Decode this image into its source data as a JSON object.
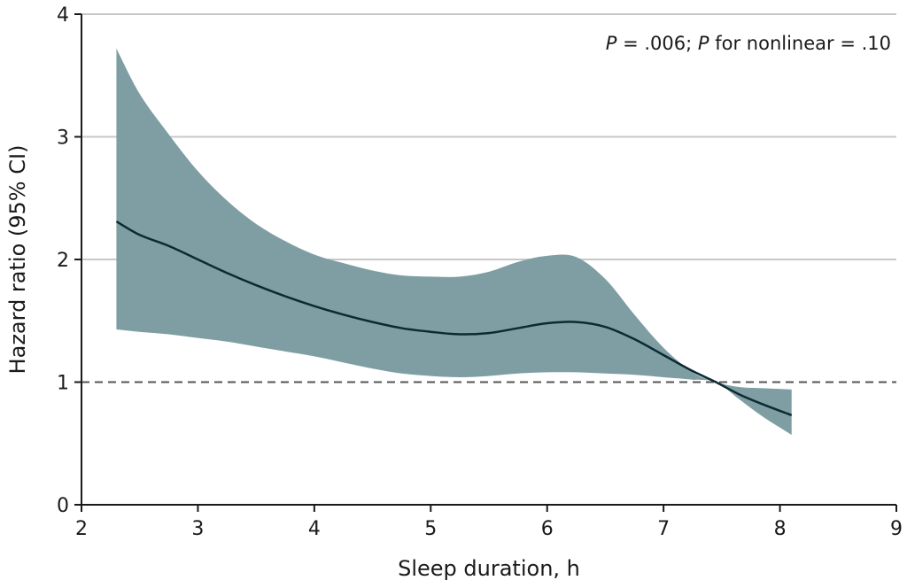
{
  "chart_data": {
    "type": "line",
    "title": "",
    "xlabel": "Sleep duration, h",
    "ylabel": "Hazard ratio (95% CI)",
    "xlim": [
      2,
      9
    ],
    "ylim": [
      0,
      4
    ],
    "xticks": [
      2,
      3,
      4,
      5,
      6,
      7,
      8,
      9
    ],
    "yticks": [
      0,
      1,
      2,
      3,
      4
    ],
    "grid": "horizontal",
    "reference_line": 1,
    "annotation": {
      "p_italic": "P",
      "p_text": " = .006; ",
      "p2_italic": "P",
      "p2_text": " for nonlinear = .10"
    },
    "series": [
      {
        "x": [
          2.3,
          2.5,
          2.75,
          3.0,
          3.25,
          3.5,
          3.75,
          4.0,
          4.25,
          4.5,
          4.75,
          5.0,
          5.25,
          5.5,
          5.75,
          6.0,
          6.25,
          6.5,
          6.75,
          7.0,
          7.25,
          7.45,
          7.65,
          7.85,
          8.1
        ],
        "y": [
          2.31,
          2.2,
          2.11,
          2.0,
          1.89,
          1.79,
          1.7,
          1.62,
          1.55,
          1.49,
          1.44,
          1.41,
          1.39,
          1.4,
          1.44,
          1.48,
          1.49,
          1.45,
          1.35,
          1.22,
          1.09,
          1.0,
          0.9,
          0.82,
          0.73
        ],
        "ci_lower": [
          1.43,
          1.41,
          1.39,
          1.36,
          1.33,
          1.29,
          1.25,
          1.21,
          1.16,
          1.11,
          1.07,
          1.05,
          1.04,
          1.05,
          1.07,
          1.08,
          1.08,
          1.07,
          1.06,
          1.04,
          1.02,
          1.0,
          0.86,
          0.72,
          0.57
        ],
        "ci_upper": [
          3.72,
          3.35,
          3.02,
          2.72,
          2.48,
          2.29,
          2.15,
          2.04,
          1.97,
          1.91,
          1.87,
          1.86,
          1.86,
          1.9,
          1.98,
          2.03,
          2.02,
          1.84,
          1.55,
          1.28,
          1.08,
          1.0,
          0.96,
          0.95,
          0.94
        ]
      }
    ]
  },
  "colors": {
    "band": "#7f9ea3",
    "line": "#0b2a33",
    "grid": "#c8c8c8",
    "reference": "#555555",
    "axis": "#1a1a1a"
  }
}
